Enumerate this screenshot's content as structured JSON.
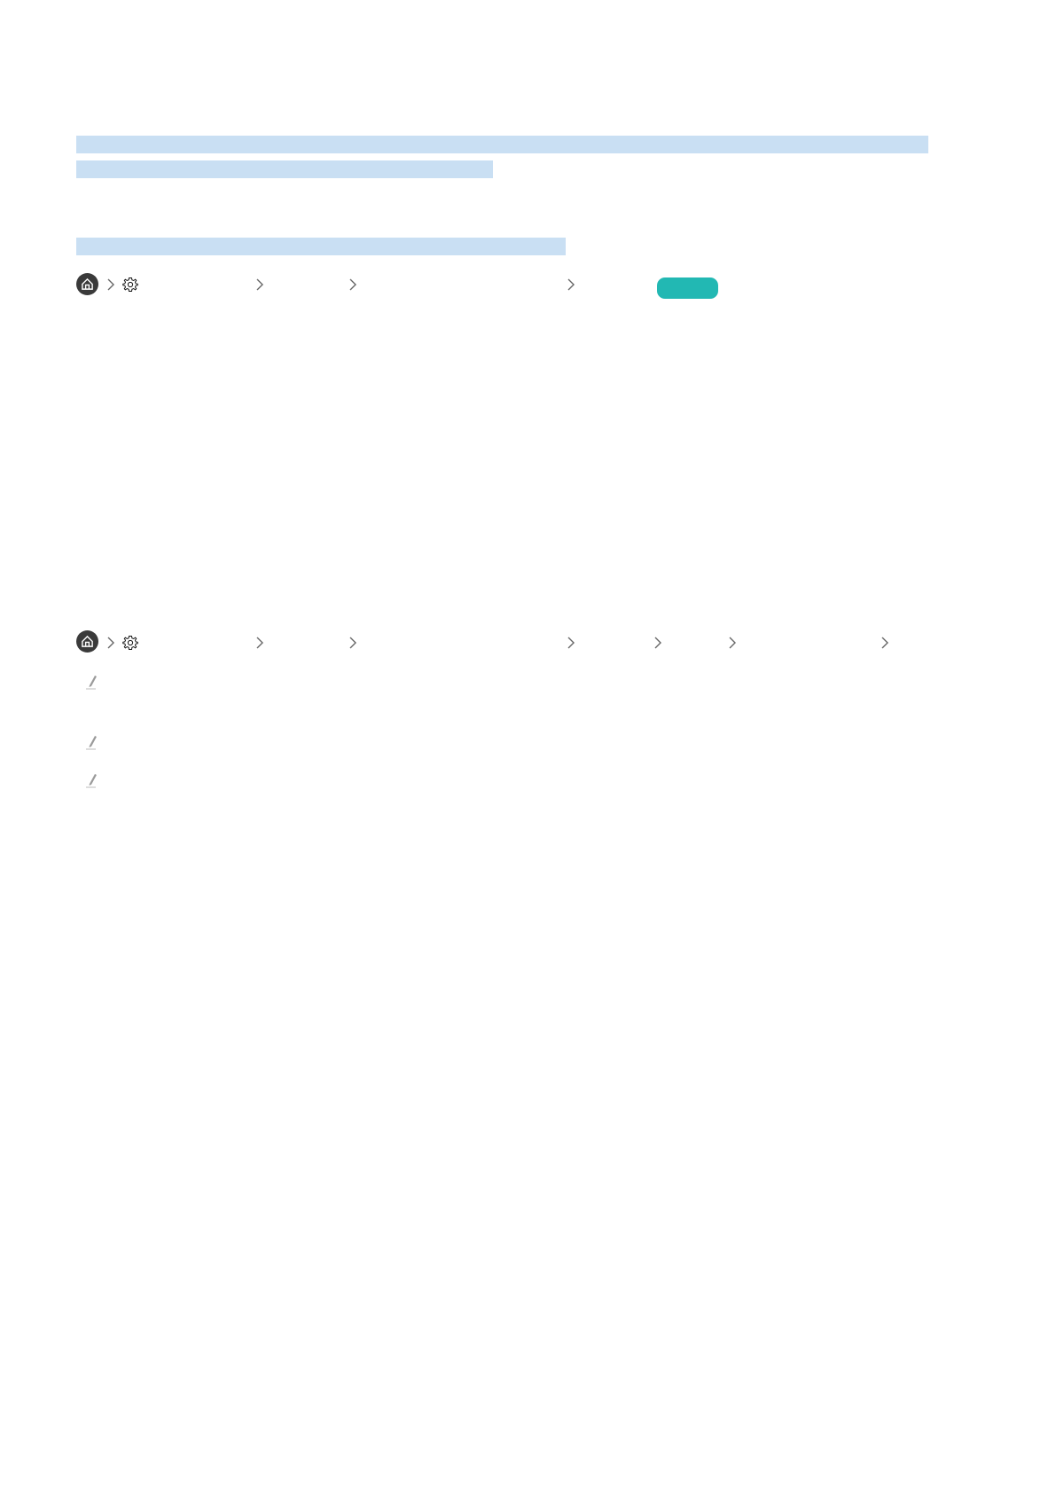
{
  "colors": {
    "highlight": "#c9dff3",
    "accent_button": "#22b8b3",
    "home_icon_bg": "#3a3a3a",
    "chevron": "#666666",
    "pencil": "#9a9a9a"
  },
  "sections": [
    {
      "breadcrumb": {
        "icons": [
          "home-icon",
          "chevron-right-icon",
          "gear-icon",
          "chevron-right-icon",
          "chevron-right-icon",
          "chevron-right-icon"
        ],
        "has_try_now_button": true
      }
    },
    {
      "breadcrumb": {
        "icons": [
          "home-icon",
          "chevron-right-icon",
          "gear-icon",
          "chevron-right-icon",
          "chevron-right-icon",
          "chevron-right-icon",
          "chevron-right-icon",
          "chevron-right-icon",
          "chevron-right-icon"
        ]
      },
      "notes": 3
    }
  ]
}
